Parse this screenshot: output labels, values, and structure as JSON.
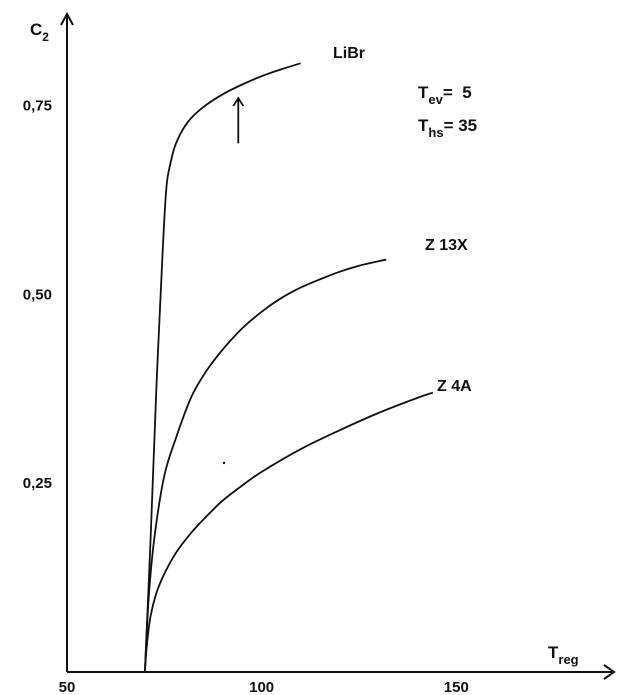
{
  "chart_data": {
    "type": "line",
    "title": "",
    "xlabel": {
      "main": "T",
      "sub": "reg"
    },
    "ylabel": {
      "main": "C",
      "sub": "2"
    },
    "xlim": [
      50,
      190
    ],
    "ylim": [
      0,
      0.87
    ],
    "xticks": [
      {
        "value": 50,
        "label": "50"
      },
      {
        "value": 100,
        "label": "100"
      },
      {
        "value": 150,
        "label": "150"
      }
    ],
    "yticks": [
      {
        "value": 0.25,
        "label": "0,25"
      },
      {
        "value": 0.5,
        "label": "0,50"
      },
      {
        "value": 0.75,
        "label": "0,75"
      }
    ],
    "grid": false,
    "annotations": [
      {
        "main": "T",
        "sub": "ev",
        "text": "=  5"
      },
      {
        "main": "T",
        "sub": "hs",
        "text": "= 35"
      }
    ],
    "arrow_marker": {
      "x": 94,
      "y": 0.7,
      "y_end": 0.76
    },
    "series": [
      {
        "name": "LiBr",
        "x": [
          70,
          71.5,
          73,
          74.5,
          75.5,
          76.5,
          78,
          81,
          85,
          90,
          95,
          100,
          105,
          110
        ],
        "y": [
          0,
          0.18,
          0.38,
          0.55,
          0.64,
          0.672,
          0.7,
          0.728,
          0.748,
          0.765,
          0.778,
          0.789,
          0.798,
          0.806
        ]
      },
      {
        "name": "Z 13X",
        "x": [
          70,
          71,
          72.5,
          75,
          78,
          82,
          86,
          90,
          95,
          100,
          105,
          110,
          115,
          120,
          125,
          130,
          132
        ],
        "y": [
          0,
          0.1,
          0.18,
          0.26,
          0.31,
          0.365,
          0.4,
          0.427,
          0.455,
          0.477,
          0.495,
          0.509,
          0.52,
          0.53,
          0.538,
          0.544,
          0.546
        ]
      },
      {
        "name": "Z 4A",
        "x": [
          70,
          70.6,
          71.5,
          73,
          75,
          78,
          82,
          86,
          90,
          95,
          100,
          110,
          120,
          130,
          140,
          144
        ],
        "y": [
          0,
          0.04,
          0.075,
          0.105,
          0.13,
          0.158,
          0.185,
          0.207,
          0.227,
          0.247,
          0.265,
          0.295,
          0.32,
          0.343,
          0.363,
          0.37
        ]
      }
    ]
  }
}
